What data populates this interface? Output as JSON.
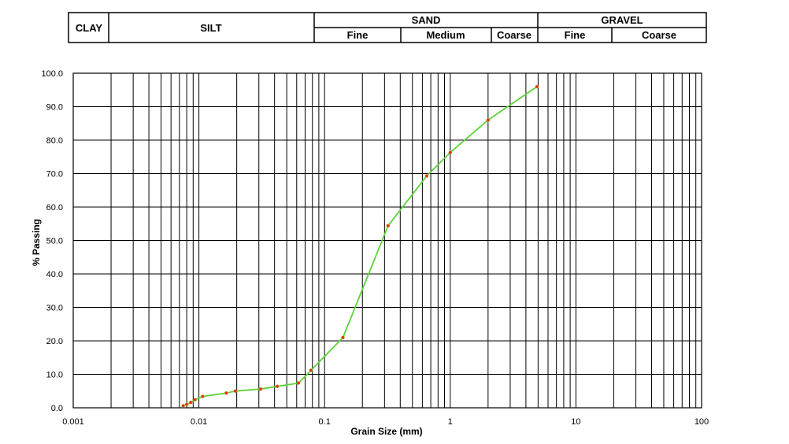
{
  "classification_header": {
    "clay": "CLAY",
    "silt": "SILT",
    "sand": "SAND",
    "gravel": "GRAVEL",
    "sand_sub": [
      "Fine",
      "Medium",
      "Coarse"
    ],
    "gravel_sub": [
      "Fine",
      "Coarse"
    ]
  },
  "chart_data": {
    "type": "scatter",
    "title": "",
    "xlabel": "Grain Size (mm)",
    "ylabel": "% Passing",
    "x_scale": "log",
    "xlim": [
      0.001,
      100
    ],
    "ylim": [
      0,
      100
    ],
    "grid": true,
    "x_tick_labels": [
      "0.001",
      "0.01",
      "0.1",
      "1",
      "10",
      "100"
    ],
    "y_tick_labels": [
      "0.0",
      "10.0",
      "20.0",
      "30.0",
      "40.0",
      "50.0",
      "60.0",
      "70.0",
      "80.0",
      "90.0",
      "100.0"
    ],
    "line_color": "#5cd23a",
    "marker_color": "#e0301e",
    "series": [
      {
        "x": [
          0.0075,
          0.008,
          0.0086,
          0.0093,
          0.0107,
          0.0165,
          0.0195,
          0.031,
          0.042,
          0.062,
          0.078,
          0.14,
          0.32,
          0.65,
          1.0,
          2.0,
          4.9
        ],
        "y": [
          0.6,
          1.0,
          1.6,
          2.4,
          3.4,
          4.4,
          5.0,
          5.6,
          6.4,
          7.4,
          11.2,
          21.0,
          54.4,
          69.3,
          76.3,
          86.0,
          96.0
        ]
      }
    ]
  }
}
